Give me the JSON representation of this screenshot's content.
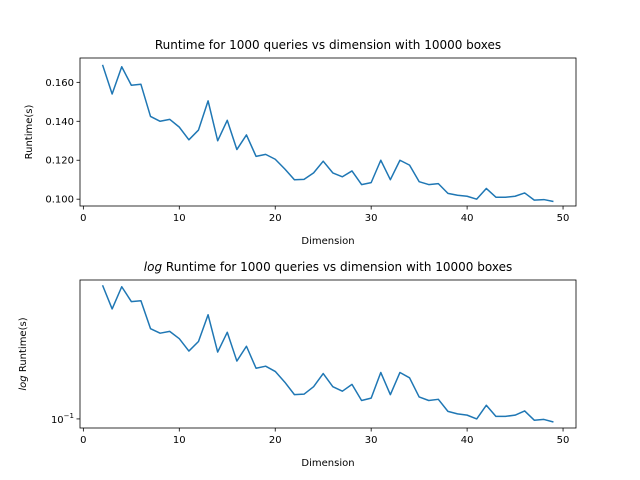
{
  "chart_data": [
    {
      "type": "line",
      "title": "Runtime for 1000 queries vs dimension with 10000 boxes",
      "xlabel": "Dimension",
      "ylabel": "Runtime(s)",
      "xlim": [
        -0.35,
        51.35
      ],
      "ylim": [
        0.0965,
        0.1725
      ],
      "xticks": [
        0,
        10,
        20,
        30,
        40,
        50
      ],
      "yticks": [
        0.1,
        0.12,
        0.14,
        0.16
      ],
      "ytick_labels": [
        "0.100",
        "0.120",
        "0.140",
        "0.160"
      ],
      "grid": false,
      "color": "#1f77b4",
      "series": [
        {
          "x": [
            2,
            3,
            4,
            5,
            6,
            7,
            8,
            9,
            10,
            11,
            12,
            13,
            14,
            15,
            16,
            17,
            18,
            19,
            20,
            21,
            22,
            23,
            24,
            25,
            26,
            27,
            28,
            29,
            30,
            31,
            32,
            33,
            34,
            35,
            36,
            37,
            38,
            39,
            40,
            41,
            42,
            43,
            44,
            45,
            46,
            47,
            48,
            49
          ],
          "values": [
            0.169,
            0.154,
            0.168,
            0.1585,
            0.159,
            0.1425,
            0.14,
            0.141,
            0.137,
            0.1305,
            0.1355,
            0.1505,
            0.13,
            0.1405,
            0.1255,
            0.133,
            0.122,
            0.123,
            0.1205,
            0.1155,
            0.11,
            0.1102,
            0.1135,
            0.1195,
            0.1135,
            0.1115,
            0.1145,
            0.1075,
            0.1085,
            0.12,
            0.11,
            0.12,
            0.1175,
            0.109,
            0.1075,
            0.108,
            0.103,
            0.102,
            0.1015,
            0.1,
            0.1055,
            0.101,
            0.101,
            0.1015,
            0.1032,
            0.0995,
            0.0998,
            0.0988
          ]
        }
      ]
    },
    {
      "type": "line",
      "title_prefix": "log",
      "title": " Runtime for 1000 queries vs dimension with 10000 boxes",
      "xlabel": "Dimension",
      "ylabel_prefix": "log",
      "ylabel": " Runtime(s)",
      "yscale": "log",
      "xlim": [
        -0.35,
        51.35
      ],
      "ylim": [
        0.0965,
        0.1725
      ],
      "xticks": [
        0,
        10,
        20,
        30,
        40,
        50
      ],
      "yticks": [
        0.1
      ],
      "ytick_labels": [
        "10",
        "−1"
      ],
      "grid": false,
      "color": "#1f77b4",
      "series": [
        {
          "x": [
            2,
            3,
            4,
            5,
            6,
            7,
            8,
            9,
            10,
            11,
            12,
            13,
            14,
            15,
            16,
            17,
            18,
            19,
            20,
            21,
            22,
            23,
            24,
            25,
            26,
            27,
            28,
            29,
            30,
            31,
            32,
            33,
            34,
            35,
            36,
            37,
            38,
            39,
            40,
            41,
            42,
            43,
            44,
            45,
            46,
            47,
            48,
            49
          ],
          "values": [
            0.169,
            0.154,
            0.168,
            0.1585,
            0.159,
            0.1425,
            0.14,
            0.141,
            0.137,
            0.1305,
            0.1355,
            0.1505,
            0.13,
            0.1405,
            0.1255,
            0.133,
            0.122,
            0.123,
            0.1205,
            0.1155,
            0.11,
            0.1102,
            0.1135,
            0.1195,
            0.1135,
            0.1115,
            0.1145,
            0.1075,
            0.1085,
            0.12,
            0.11,
            0.12,
            0.1175,
            0.109,
            0.1075,
            0.108,
            0.103,
            0.102,
            0.1015,
            0.1,
            0.1055,
            0.101,
            0.101,
            0.1015,
            0.1032,
            0.0995,
            0.0998,
            0.0988
          ]
        }
      ]
    }
  ]
}
